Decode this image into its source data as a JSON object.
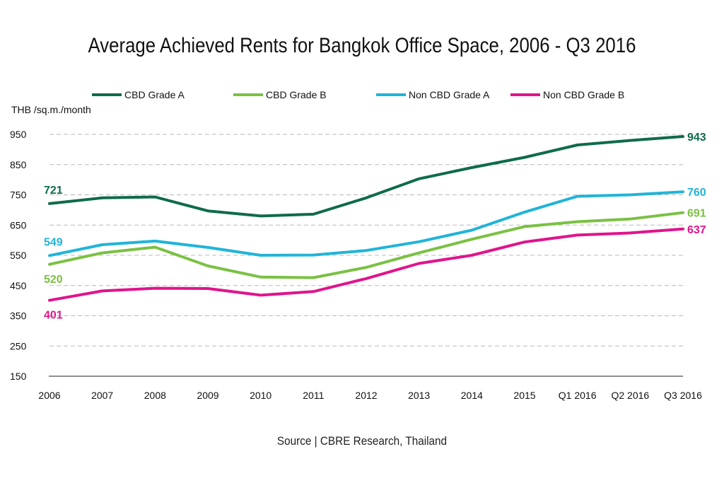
{
  "chart_data": {
    "type": "line",
    "title": "Average Achieved Rents for Bangkok Office Space, 2006 - Q3 2016",
    "ylabel": "THB /sq.m./month",
    "xlabel": "",
    "source": "Source | CBRE Research, Thailand",
    "ylim": [
      150,
      950
    ],
    "yticks": [
      150,
      250,
      350,
      450,
      550,
      650,
      750,
      850,
      950
    ],
    "grid": true,
    "legend_position": "top",
    "categories": [
      "2006",
      "2007",
      "2008",
      "2009",
      "2010",
      "2011",
      "2012",
      "2013",
      "2014",
      "2015",
      "Q1 2016",
      "Q2 2016",
      "Q3 2016"
    ],
    "series": [
      {
        "name": "CBD Grade A",
        "color": "#0f6b4a",
        "values": [
          721,
          740,
          743,
          697,
          680,
          686,
          740,
          803,
          840,
          874,
          915,
          930,
          943
        ],
        "start_label": "721",
        "end_label": "943"
      },
      {
        "name": "CBD Grade B",
        "color": "#7ac143",
        "values": [
          520,
          558,
          577,
          515,
          478,
          476,
          510,
          558,
          603,
          645,
          661,
          670,
          691
        ],
        "start_label": "520",
        "end_label": "691"
      },
      {
        "name": "Non CBD Grade A",
        "color": "#20b4d8",
        "values": [
          549,
          585,
          597,
          576,
          550,
          551,
          566,
          595,
          633,
          693,
          745,
          750,
          760
        ],
        "start_label": "549",
        "end_label": "760"
      },
      {
        "name": "Non CBD Grade B",
        "color": "#e0148c",
        "values": [
          401,
          432,
          441,
          440,
          418,
          430,
          473,
          523,
          550,
          594,
          617,
          624,
          637
        ],
        "start_label": "401",
        "end_label": "637"
      }
    ]
  }
}
